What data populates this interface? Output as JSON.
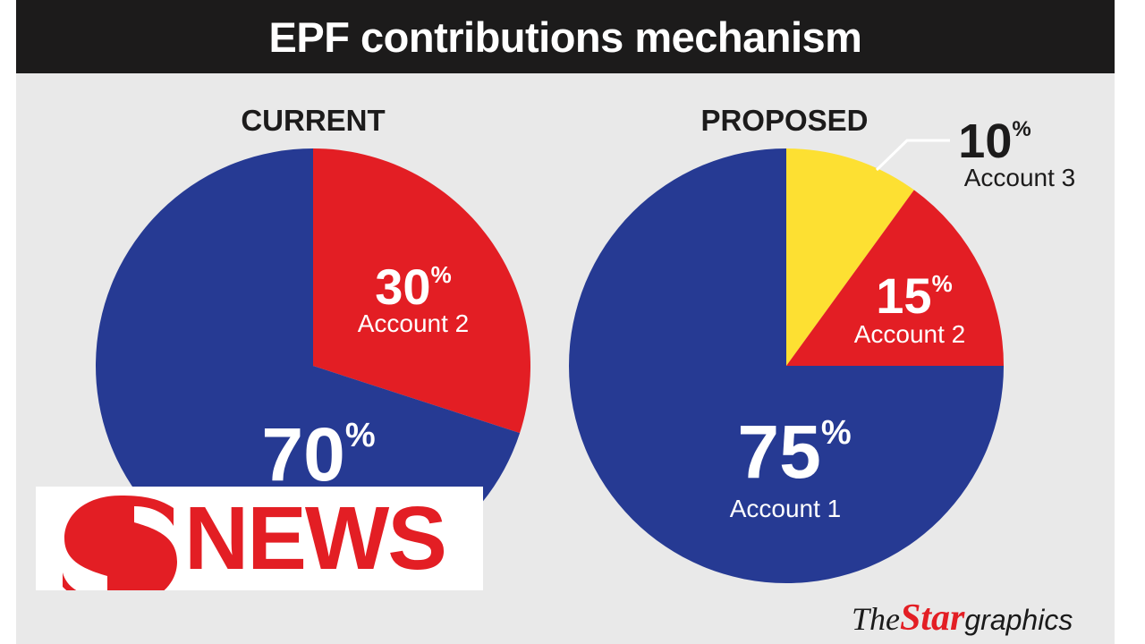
{
  "title": "EPF contributions mechanism",
  "chart_data": [
    {
      "type": "pie",
      "title": "CURRENT",
      "slices": [
        {
          "label": "Account 2",
          "value": 30,
          "display": "30",
          "color": "#e31e24"
        },
        {
          "label": "",
          "value": 70,
          "display": "70",
          "color": "#263a93"
        }
      ]
    },
    {
      "type": "pie",
      "title": "PROPOSED",
      "slices": [
        {
          "label": "Account 3",
          "value": 10,
          "display": "10",
          "color": "#fde032"
        },
        {
          "label": "Account 2",
          "value": 15,
          "display": "15",
          "color": "#e31e24"
        },
        {
          "label": "Account 1",
          "value": 75,
          "display": "75",
          "color": "#263a93"
        }
      ]
    }
  ],
  "percent_sign": "%",
  "logo": {
    "text": "NEWS",
    "color": "#e31e24"
  },
  "credit": {
    "the": "The",
    "star": "Star",
    "graphics": "graphics"
  }
}
